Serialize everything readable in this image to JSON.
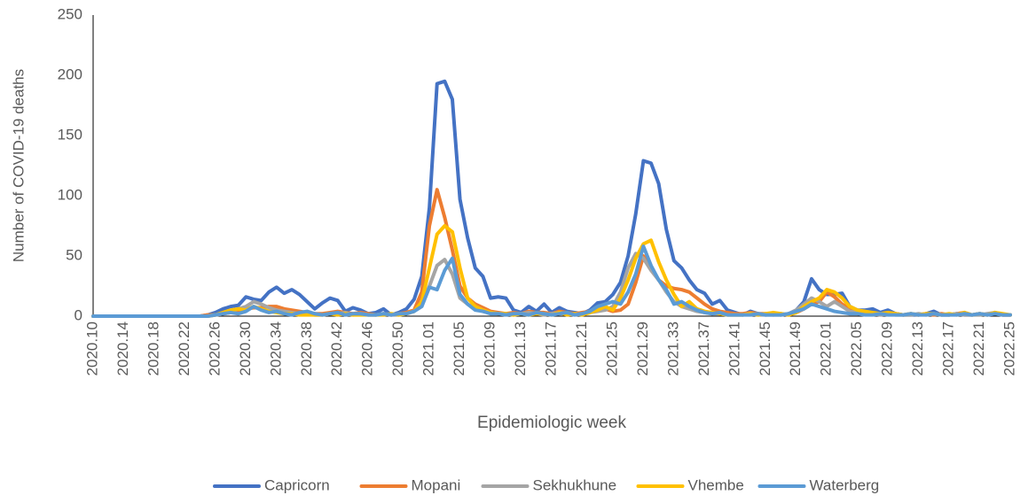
{
  "chart_data": {
    "type": "line",
    "y_label": "Number of COVID-19 deaths",
    "x_label": "Epidemiologic week",
    "categories": [
      "2020.10",
      null,
      null,
      null,
      "2020.14",
      null,
      null,
      null,
      "2020.18",
      null,
      null,
      null,
      "2020.22",
      null,
      null,
      null,
      "2020.26",
      null,
      null,
      null,
      "2020.30",
      null,
      null,
      null,
      "2020.34",
      null,
      null,
      null,
      "2020.38",
      null,
      null,
      null,
      "2020.42",
      null,
      null,
      null,
      "2020.46",
      null,
      null,
      null,
      "2020.50",
      null,
      null,
      null,
      "2021.01",
      null,
      null,
      null,
      "2021.05",
      null,
      null,
      null,
      "2021.09",
      null,
      null,
      null,
      "2021.13",
      null,
      null,
      null,
      "2021.17",
      null,
      null,
      null,
      "2021.21",
      null,
      null,
      null,
      "2021.25",
      null,
      null,
      null,
      "2021.29",
      null,
      null,
      null,
      "2021.33",
      null,
      null,
      null,
      "2021.37",
      null,
      null,
      null,
      "2021.41",
      null,
      null,
      null,
      "2021.45",
      null,
      null,
      null,
      "2021.49",
      null,
      null,
      null,
      "2022.01",
      null,
      null,
      null,
      "2022.05",
      null,
      null,
      null,
      "2022.09",
      null,
      null,
      null,
      "2022.13",
      null,
      null,
      null,
      "2022.17",
      null,
      null,
      null,
      "2022.21",
      null,
      null,
      null,
      "2022.25"
    ],
    "series": [
      {
        "name": "Capricorn",
        "color": "#4472c4",
        "values": [
          0,
          0,
          0,
          0,
          0,
          0,
          0,
          0,
          0,
          0,
          0,
          0,
          0,
          0,
          0,
          1,
          3,
          6,
          8,
          9,
          16,
          14,
          13,
          20,
          24,
          19,
          22,
          18,
          12,
          6,
          11,
          15,
          13,
          4,
          7,
          5,
          2,
          3,
          6,
          1,
          3,
          6,
          14,
          33,
          90,
          193,
          195,
          180,
          97,
          65,
          40,
          33,
          15,
          16,
          15,
          5,
          3,
          8,
          4,
          10,
          3,
          7,
          4,
          3,
          2,
          5,
          11,
          12,
          18,
          28,
          50,
          85,
          129,
          127,
          110,
          72,
          46,
          40,
          30,
          22,
          19,
          10,
          13,
          5,
          3,
          1,
          4,
          2,
          1,
          2,
          1,
          2,
          5,
          12,
          31,
          22,
          18,
          18,
          19,
          8,
          5,
          5,
          6,
          3,
          5,
          2,
          1,
          1,
          1,
          2,
          4,
          1,
          1,
          2,
          1,
          1,
          2,
          1,
          2,
          1,
          1
        ]
      },
      {
        "name": "Mopani",
        "color": "#ed7d31",
        "values": [
          0,
          0,
          0,
          0,
          0,
          0,
          0,
          0,
          0,
          0,
          0,
          0,
          0,
          0,
          0,
          1,
          1,
          2,
          3,
          5,
          6,
          7,
          7,
          8,
          8,
          6,
          5,
          4,
          3,
          2,
          2,
          3,
          4,
          3,
          2,
          3,
          2,
          1,
          2,
          1,
          2,
          3,
          5,
          20,
          75,
          105,
          82,
          55,
          25,
          15,
          10,
          7,
          4,
          3,
          2,
          3,
          2,
          4,
          3,
          3,
          2,
          4,
          3,
          2,
          3,
          4,
          5,
          6,
          4,
          5,
          10,
          28,
          50,
          40,
          30,
          25,
          23,
          22,
          20,
          15,
          10,
          6,
          4,
          3,
          2,
          2,
          3,
          2,
          2,
          1,
          2,
          1,
          3,
          6,
          10,
          12,
          20,
          16,
          10,
          6,
          4,
          3,
          2,
          2,
          3,
          2,
          1,
          2,
          1,
          2,
          1,
          2,
          1,
          2,
          3,
          1,
          2,
          1,
          3,
          1,
          1
        ]
      },
      {
        "name": "Sekhukhune",
        "color": "#a5a5a5",
        "values": [
          0,
          0,
          0,
          0,
          0,
          0,
          0,
          0,
          0,
          0,
          0,
          0,
          0,
          0,
          0,
          0,
          1,
          2,
          4,
          6,
          8,
          12,
          10,
          7,
          5,
          4,
          3,
          2,
          2,
          1,
          1,
          2,
          2,
          3,
          1,
          2,
          1,
          1,
          2,
          1,
          1,
          2,
          4,
          10,
          25,
          42,
          47,
          35,
          15,
          10,
          6,
          4,
          3,
          2,
          2,
          1,
          2,
          3,
          2,
          1,
          2,
          3,
          2,
          1,
          2,
          3,
          4,
          5,
          8,
          20,
          40,
          52,
          48,
          38,
          30,
          20,
          12,
          8,
          6,
          4,
          3,
          2,
          2,
          1,
          1,
          1,
          2,
          1,
          1,
          1,
          1,
          2,
          5,
          10,
          15,
          12,
          8,
          12,
          8,
          4,
          3,
          2,
          2,
          1,
          2,
          1,
          1,
          1,
          2,
          1,
          2,
          1,
          1,
          2,
          1,
          1,
          1,
          2,
          3,
          1,
          1
        ]
      },
      {
        "name": "Vhembe",
        "color": "#ffc000",
        "values": [
          0,
          0,
          0,
          0,
          0,
          0,
          0,
          0,
          0,
          0,
          0,
          0,
          0,
          0,
          0,
          0,
          1,
          3,
          5,
          6,
          5,
          8,
          6,
          4,
          3,
          2,
          2,
          1,
          1,
          1,
          1,
          2,
          1,
          2,
          1,
          1,
          1,
          1,
          1,
          2,
          1,
          2,
          4,
          12,
          40,
          68,
          75,
          70,
          40,
          15,
          8,
          5,
          3,
          2,
          2,
          1,
          2,
          1,
          2,
          2,
          1,
          3,
          1,
          2,
          1,
          3,
          5,
          8,
          5,
          15,
          30,
          48,
          60,
          63,
          45,
          30,
          18,
          8,
          12,
          6,
          4,
          3,
          2,
          1,
          1,
          1,
          2,
          1,
          2,
          3,
          2,
          1,
          3,
          8,
          12,
          15,
          22,
          20,
          15,
          8,
          5,
          4,
          3,
          2,
          3,
          2,
          1,
          2,
          1,
          2,
          2,
          1,
          2,
          1,
          3,
          1,
          2,
          1,
          3,
          2,
          1
        ]
      },
      {
        "name": "Waterberg",
        "color": "#5b9bd5",
        "values": [
          0,
          0,
          0,
          0,
          0,
          0,
          0,
          0,
          0,
          0,
          0,
          0,
          0,
          0,
          0,
          0,
          1,
          2,
          3,
          2,
          4,
          8,
          5,
          3,
          4,
          2,
          1,
          3,
          4,
          2,
          1,
          2,
          3,
          1,
          2,
          2,
          1,
          1,
          2,
          1,
          2,
          2,
          4,
          8,
          24,
          22,
          38,
          48,
          18,
          10,
          5,
          4,
          2,
          2,
          1,
          2,
          2,
          1,
          3,
          2,
          1,
          2,
          3,
          1,
          2,
          4,
          8,
          10,
          12,
          10,
          20,
          35,
          58,
          42,
          30,
          22,
          10,
          12,
          8,
          5,
          3,
          2,
          3,
          1,
          1,
          1,
          1,
          2,
          1,
          1,
          1,
          2,
          4,
          6,
          10,
          8,
          6,
          4,
          3,
          2,
          2,
          1,
          1,
          2,
          1,
          1,
          1,
          2,
          1,
          1,
          2,
          1,
          1,
          1,
          2,
          1,
          2,
          1,
          2,
          1,
          1
        ]
      }
    ],
    "ylim": [
      0,
      250
    ],
    "yticks": [
      0,
      50,
      100,
      150,
      200,
      250
    ],
    "grid": false,
    "legend": "bottom"
  }
}
